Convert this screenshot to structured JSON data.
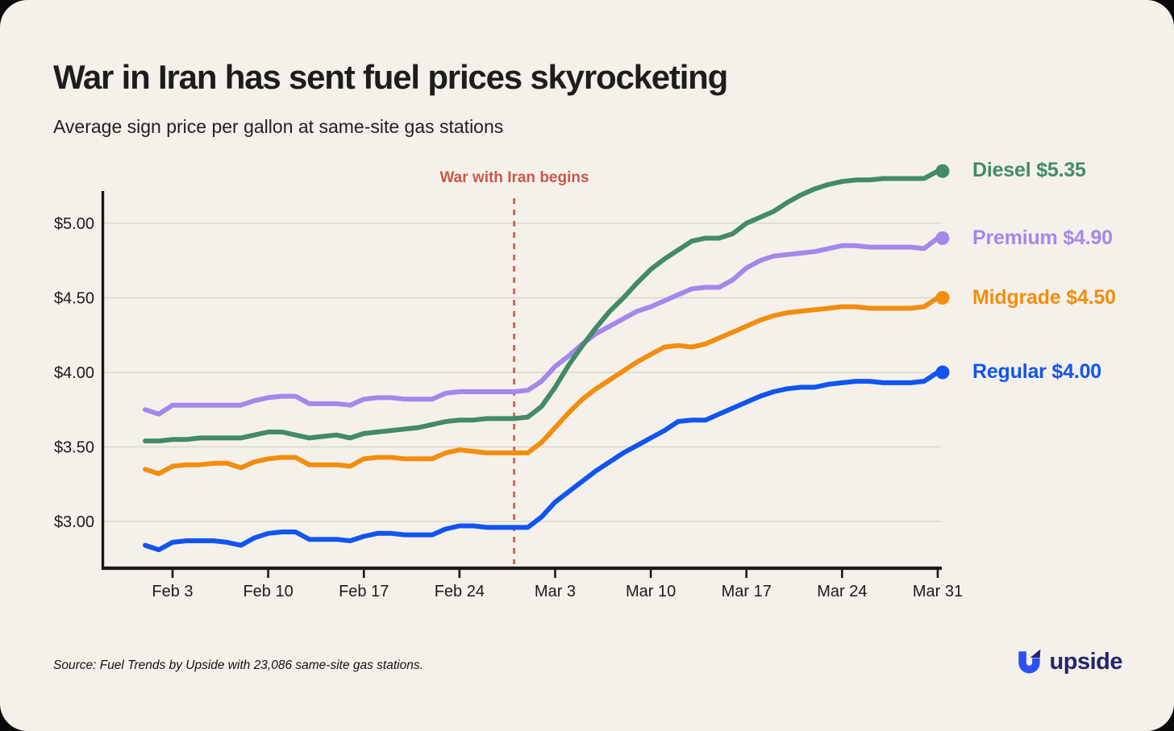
{
  "page": {
    "title": "War in Iran has sent fuel prices skyrocketing",
    "subtitle": "Average sign price per gallon at same-site gas stations",
    "source_note": "Source: Fuel Trends by Upside with 23,086 same-site gas stations.",
    "brand": {
      "name": "upside"
    }
  },
  "colors": {
    "background": "#F5F1EA",
    "outer": "#0a0a0a",
    "gridline": "#DBD7CF",
    "axis": "#191919",
    "title_text": "#1d1d1d",
    "annotation_red": "#C9574A",
    "brand_navy": "#23256E",
    "brand_blue": "#2B50F4"
  },
  "chart_data": {
    "type": "line",
    "title": "War in Iran has sent fuel prices skyrocketing",
    "subtitle": "Average sign price per gallon at same-site gas stations",
    "unit": "USD per gallon",
    "grid": "horizontal",
    "legend_position": "right of line ends",
    "x": [
      "Feb 1",
      "Feb 2",
      "Feb 3",
      "Feb 4",
      "Feb 5",
      "Feb 6",
      "Feb 7",
      "Feb 8",
      "Feb 9",
      "Feb 10",
      "Feb 11",
      "Feb 12",
      "Feb 13",
      "Feb 14",
      "Feb 15",
      "Feb 16",
      "Feb 17",
      "Feb 18",
      "Feb 19",
      "Feb 20",
      "Feb 21",
      "Feb 22",
      "Feb 23",
      "Feb 24",
      "Feb 25",
      "Feb 26",
      "Feb 27",
      "Feb 28",
      "Mar 1",
      "Mar 2",
      "Mar 3",
      "Mar 4",
      "Mar 5",
      "Mar 6",
      "Mar 7",
      "Mar 8",
      "Mar 9",
      "Mar 10",
      "Mar 11",
      "Mar 12",
      "Mar 13",
      "Mar 14",
      "Mar 15",
      "Mar 16",
      "Mar 17",
      "Mar 18",
      "Mar 19",
      "Mar 20",
      "Mar 21",
      "Mar 22",
      "Mar 23",
      "Mar 24",
      "Mar 25",
      "Mar 26",
      "Mar 27",
      "Mar 28",
      "Mar 29",
      "Mar 30",
      "Mar 31"
    ],
    "x_tick_labels": [
      "Feb 3",
      "Feb 10",
      "Feb 17",
      "Feb 24",
      "Mar 3",
      "Mar 10",
      "Mar 17",
      "Mar 24",
      "Mar 31"
    ],
    "y_axis": {
      "tick_values": [
        3.0,
        3.5,
        4.0,
        4.5,
        5.0
      ],
      "tick_labels": [
        "$3.00",
        "$3.50",
        "$4.00",
        "$4.50",
        "$5.00"
      ],
      "ylim": [
        2.72,
        5.45
      ]
    },
    "annotation": {
      "label": "War with Iran begins",
      "x": "Feb 28",
      "style": "dashed-vertical",
      "color": "#C9574A"
    },
    "series": [
      {
        "id": "diesel",
        "label": "Diesel",
        "legend": "Diesel $5.35",
        "end_value": 5.35,
        "color": "#428A68",
        "values": [
          3.54,
          3.54,
          3.55,
          3.55,
          3.56,
          3.56,
          3.56,
          3.56,
          3.58,
          3.6,
          3.6,
          3.58,
          3.56,
          3.57,
          3.58,
          3.56,
          3.59,
          3.6,
          3.61,
          3.62,
          3.63,
          3.65,
          3.67,
          3.68,
          3.68,
          3.69,
          3.69,
          3.69,
          3.7,
          3.77,
          3.9,
          4.05,
          4.18,
          4.3,
          4.41,
          4.5,
          4.6,
          4.69,
          4.76,
          4.82,
          4.88,
          4.9,
          4.9,
          4.93,
          5.0,
          5.04,
          5.08,
          5.14,
          5.19,
          5.23,
          5.26,
          5.28,
          5.29,
          5.29,
          5.3,
          5.3,
          5.3,
          5.3,
          5.35
        ]
      },
      {
        "id": "premium",
        "label": "Premium",
        "legend": "Premium $4.90",
        "end_value": 4.9,
        "color": "#A388EA",
        "values": [
          3.75,
          3.72,
          3.78,
          3.78,
          3.78,
          3.78,
          3.78,
          3.78,
          3.81,
          3.83,
          3.84,
          3.84,
          3.79,
          3.79,
          3.79,
          3.78,
          3.82,
          3.83,
          3.83,
          3.82,
          3.82,
          3.82,
          3.86,
          3.87,
          3.87,
          3.87,
          3.87,
          3.87,
          3.88,
          3.94,
          4.04,
          4.11,
          4.19,
          4.26,
          4.31,
          4.36,
          4.41,
          4.44,
          4.48,
          4.52,
          4.56,
          4.57,
          4.57,
          4.62,
          4.7,
          4.75,
          4.78,
          4.79,
          4.8,
          4.81,
          4.83,
          4.85,
          4.85,
          4.84,
          4.84,
          4.84,
          4.84,
          4.83,
          4.9
        ]
      },
      {
        "id": "midgrade",
        "label": "Midgrade",
        "legend": "Midgrade $4.50",
        "end_value": 4.5,
        "color": "#F28D0E",
        "values": [
          3.35,
          3.32,
          3.37,
          3.38,
          3.38,
          3.39,
          3.39,
          3.36,
          3.4,
          3.42,
          3.43,
          3.43,
          3.38,
          3.38,
          3.38,
          3.37,
          3.42,
          3.43,
          3.43,
          3.42,
          3.42,
          3.42,
          3.46,
          3.48,
          3.47,
          3.46,
          3.46,
          3.46,
          3.46,
          3.53,
          3.63,
          3.73,
          3.82,
          3.89,
          3.95,
          4.01,
          4.07,
          4.12,
          4.17,
          4.18,
          4.17,
          4.19,
          4.23,
          4.27,
          4.31,
          4.35,
          4.38,
          4.4,
          4.41,
          4.42,
          4.43,
          4.44,
          4.44,
          4.43,
          4.43,
          4.43,
          4.43,
          4.44,
          4.5
        ]
      },
      {
        "id": "regular",
        "label": "Regular",
        "legend": "Regular $4.00",
        "end_value": 4.0,
        "color": "#1155F0",
        "values": [
          2.84,
          2.81,
          2.86,
          2.87,
          2.87,
          2.87,
          2.86,
          2.84,
          2.89,
          2.92,
          2.93,
          2.93,
          2.88,
          2.88,
          2.88,
          2.87,
          2.9,
          2.92,
          2.92,
          2.91,
          2.91,
          2.91,
          2.95,
          2.97,
          2.97,
          2.96,
          2.96,
          2.96,
          2.96,
          3.03,
          3.13,
          3.2,
          3.27,
          3.34,
          3.4,
          3.46,
          3.51,
          3.56,
          3.61,
          3.67,
          3.68,
          3.68,
          3.72,
          3.76,
          3.8,
          3.84,
          3.87,
          3.89,
          3.9,
          3.9,
          3.92,
          3.93,
          3.94,
          3.94,
          3.93,
          3.93,
          3.93,
          3.94,
          4.0
        ]
      }
    ]
  }
}
